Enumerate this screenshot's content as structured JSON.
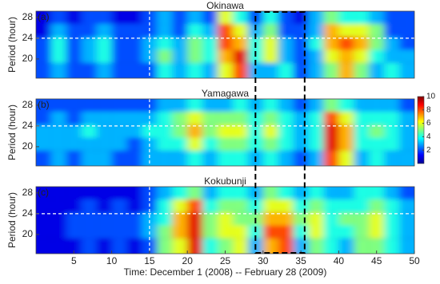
{
  "chart_data": [
    {
      "type": "heatmap",
      "title": "Okinawa",
      "panel_label": "(a)",
      "y_label": "Period (hour)",
      "x": [
        1,
        3,
        5,
        7,
        9,
        11,
        13,
        15,
        17,
        19,
        21,
        23,
        25,
        27,
        29,
        31,
        33,
        35,
        37,
        39,
        41,
        43,
        45,
        47,
        49
      ],
      "y": [
        18,
        20.5,
        23,
        25.5,
        28
      ],
      "z": [
        [
          2,
          3,
          2,
          2,
          3,
          2,
          2,
          2,
          4,
          3,
          4,
          3,
          6,
          8,
          3,
          3,
          4,
          2,
          3,
          5,
          7,
          5,
          3,
          4,
          3
        ],
        [
          2,
          4,
          2,
          3,
          4,
          2,
          2,
          3,
          5,
          3,
          5,
          4,
          7,
          9,
          4,
          6,
          3,
          2,
          3,
          6,
          7,
          6,
          4,
          3,
          3
        ],
        [
          2,
          4,
          2,
          3,
          4,
          2,
          2,
          3,
          4,
          3,
          5,
          4,
          8,
          7,
          4,
          6,
          3,
          2,
          4,
          7,
          8,
          7,
          5,
          3,
          2
        ],
        [
          1,
          3,
          2,
          2,
          3,
          2,
          2,
          2,
          3,
          2,
          4,
          3,
          8,
          6,
          3,
          5,
          2,
          2,
          3,
          7,
          6,
          6,
          5,
          2,
          2
        ],
        [
          1,
          2,
          1,
          2,
          2,
          1,
          1,
          2,
          3,
          2,
          3,
          2,
          6,
          4,
          2,
          4,
          2,
          1,
          3,
          5,
          4,
          4,
          3,
          2,
          2
        ]
      ],
      "xlim": [
        0,
        50
      ],
      "ylim": [
        16.3,
        29.2
      ],
      "yticks": [
        20,
        24,
        28
      ],
      "ref_x": 15,
      "ref_y": 24,
      "highlight_x": [
        29,
        35.5
      ]
    },
    {
      "type": "heatmap",
      "title": "Yamagawa",
      "panel_label": "(b)",
      "y_label": "Period (hour)",
      "x": [
        1,
        3,
        5,
        7,
        9,
        11,
        13,
        15,
        17,
        19,
        21,
        23,
        25,
        27,
        29,
        31,
        33,
        35,
        37,
        39,
        41,
        43,
        45,
        47,
        49
      ],
      "y": [
        18,
        20.5,
        23,
        25.5,
        28
      ],
      "z": [
        [
          2,
          3,
          2,
          3,
          3,
          2,
          2,
          3,
          3,
          3,
          4,
          3,
          4,
          4,
          3,
          4,
          3,
          2,
          3,
          8,
          6,
          3,
          4,
          3,
          3
        ],
        [
          3,
          3,
          3,
          3,
          3,
          3,
          2,
          3,
          4,
          4,
          6,
          4,
          5,
          5,
          4,
          5,
          4,
          3,
          4,
          9,
          7,
          4,
          4,
          4,
          3
        ],
        [
          3,
          3,
          3,
          4,
          3,
          3,
          3,
          4,
          4,
          5,
          7,
          5,
          6,
          6,
          4,
          6,
          4,
          3,
          4,
          9,
          7,
          4,
          5,
          4,
          3
        ],
        [
          2,
          3,
          2,
          3,
          3,
          3,
          3,
          3,
          4,
          5,
          6,
          5,
          5,
          5,
          4,
          5,
          4,
          3,
          4,
          8,
          6,
          4,
          4,
          4,
          3
        ],
        [
          2,
          2,
          2,
          2,
          2,
          2,
          2,
          2,
          3,
          3,
          4,
          3,
          3,
          4,
          3,
          4,
          3,
          2,
          3,
          5,
          4,
          3,
          3,
          3,
          2
        ]
      ],
      "xlim": [
        0,
        50
      ],
      "ylim": [
        16.3,
        29.2
      ],
      "yticks": [
        20,
        24,
        28
      ],
      "ref_x": 15,
      "ref_y": 24,
      "colorbar": {
        "lim": [
          0,
          10
        ],
        "ticks": [
          2,
          4,
          6,
          8,
          10
        ]
      }
    },
    {
      "type": "heatmap",
      "title": "Kokubunji",
      "panel_label": "(c)",
      "y_label": "Period (hour)",
      "x": [
        1,
        3,
        5,
        7,
        9,
        11,
        13,
        15,
        17,
        19,
        21,
        23,
        25,
        27,
        29,
        31,
        33,
        35,
        37,
        39,
        41,
        43,
        45,
        47,
        49
      ],
      "y": [
        18,
        20.5,
        23,
        25.5,
        28
      ],
      "z": [
        [
          1,
          1,
          1,
          2,
          1,
          2,
          1,
          2,
          5,
          6,
          9,
          4,
          5,
          6,
          3,
          7,
          8,
          3,
          5,
          4,
          3,
          5,
          5,
          4,
          3
        ],
        [
          1,
          1,
          2,
          2,
          2,
          2,
          2,
          3,
          5,
          7,
          9,
          5,
          6,
          6,
          4,
          8,
          8,
          4,
          6,
          4,
          4,
          5,
          6,
          4,
          3
        ],
        [
          1,
          1,
          2,
          2,
          2,
          2,
          2,
          3,
          4,
          7,
          9,
          5,
          6,
          5,
          5,
          7,
          7,
          5,
          6,
          4,
          5,
          5,
          6,
          4,
          3
        ],
        [
          1,
          1,
          1,
          2,
          1,
          2,
          1,
          2,
          4,
          6,
          8,
          4,
          5,
          5,
          4,
          6,
          6,
          4,
          5,
          4,
          4,
          4,
          5,
          4,
          3
        ],
        [
          1,
          1,
          1,
          1,
          1,
          1,
          1,
          2,
          3,
          4,
          5,
          3,
          4,
          4,
          3,
          5,
          4,
          3,
          4,
          3,
          3,
          4,
          4,
          3,
          2
        ]
      ],
      "xlim": [
        0,
        50
      ],
      "ylim": [
        16.3,
        29.2
      ],
      "yticks": [
        20,
        24,
        28
      ],
      "ref_x": 15,
      "ref_y": 24,
      "xticks": [
        5,
        10,
        15,
        20,
        25,
        30,
        35,
        40,
        45,
        50
      ],
      "x_label": "Time: December 1 (2008) -- February 28 (2009)"
    }
  ]
}
